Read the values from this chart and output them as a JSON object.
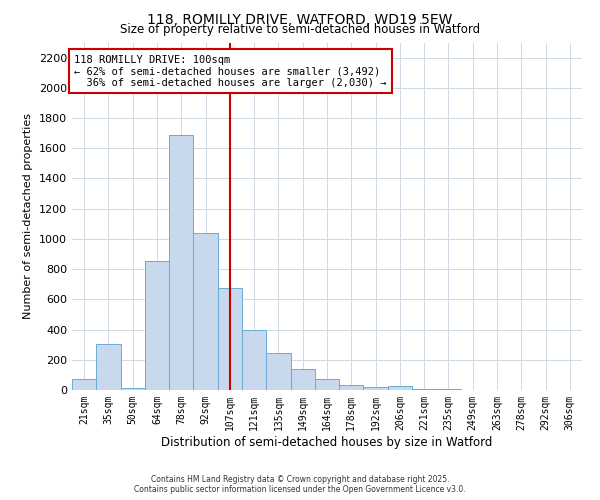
{
  "title": "118, ROMILLY DRIVE, WATFORD, WD19 5EW",
  "subtitle": "Size of property relative to semi-detached houses in Watford",
  "xlabel": "Distribution of semi-detached houses by size in Watford",
  "ylabel": "Number of semi-detached properties",
  "bar_labels": [
    "21sqm",
    "35sqm",
    "50sqm",
    "64sqm",
    "78sqm",
    "92sqm",
    "107sqm",
    "121sqm",
    "135sqm",
    "149sqm",
    "164sqm",
    "178sqm",
    "192sqm",
    "206sqm",
    "221sqm",
    "235sqm",
    "249sqm",
    "263sqm",
    "278sqm",
    "292sqm",
    "306sqm"
  ],
  "bar_values": [
    70,
    305,
    15,
    855,
    1690,
    1040,
    675,
    395,
    245,
    140,
    75,
    35,
    20,
    25,
    5,
    5,
    2,
    2,
    2,
    2,
    2
  ],
  "bar_color": "#c8d9ee",
  "bar_edgecolor": "#6aaad4",
  "vline_index": 6,
  "vline_color": "#cc0000",
  "annotation_title": "118 ROMILLY DRIVE: 100sqm",
  "annotation_line1": "← 62% of semi-detached houses are smaller (3,492)",
  "annotation_line2": "  36% of semi-detached houses are larger (2,030) →",
  "annotation_box_color": "#ffffff",
  "annotation_box_edgecolor": "#cc0000",
  "ylim": [
    0,
    2300
  ],
  "yticks": [
    0,
    200,
    400,
    600,
    800,
    1000,
    1200,
    1400,
    1600,
    1800,
    2000,
    2200
  ],
  "grid_color": "#d0d8e4",
  "bg_color": "#ffffff",
  "footnote1": "Contains HM Land Registry data © Crown copyright and database right 2025.",
  "footnote2": "Contains public sector information licensed under the Open Government Licence v3.0."
}
